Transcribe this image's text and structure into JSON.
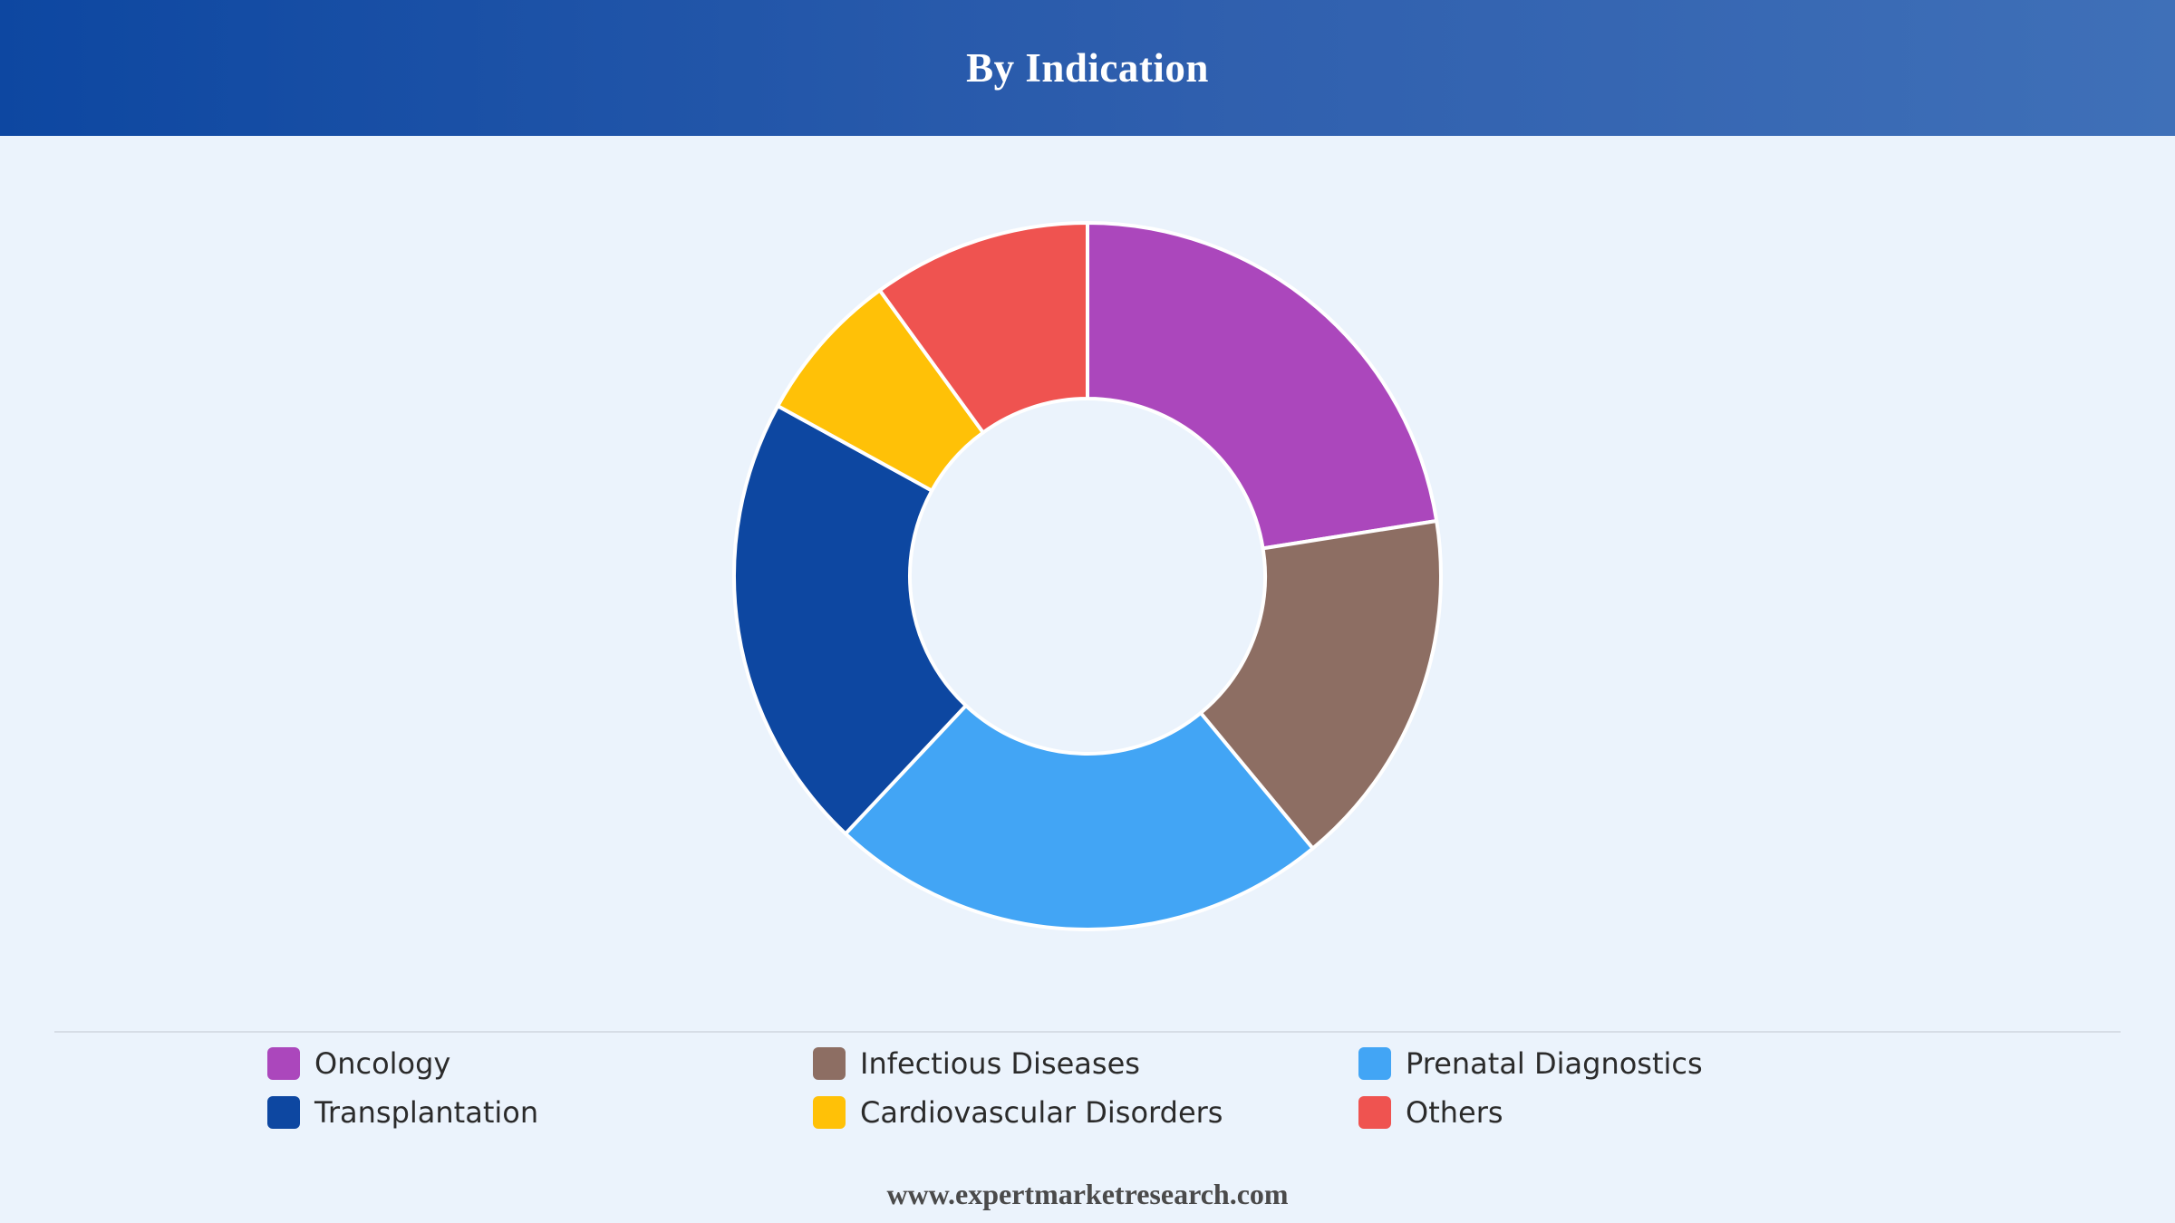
{
  "header": {
    "title": "By Indication"
  },
  "chart_data": {
    "type": "pie",
    "donut": true,
    "title": "By Indication",
    "categories": [
      "Oncology",
      "Infectious Diseases",
      "Prenatal Diagnostics",
      "Transplantation",
      "Cardiovascular Disorders",
      "Others"
    ],
    "values": [
      22.5,
      16.5,
      23,
      21,
      7,
      10
    ],
    "colors": [
      "#ab47bc",
      "#8d6e63",
      "#42a5f5",
      "#0d47a1",
      "#ffc107",
      "#ef5350"
    ],
    "legend_position": "bottom"
  },
  "legend": {
    "items": [
      {
        "label": "Oncology",
        "color": "#ab47bc"
      },
      {
        "label": "Infectious Diseases",
        "color": "#8d6e63"
      },
      {
        "label": "Prenatal Diagnostics",
        "color": "#42a5f5"
      },
      {
        "label": "Transplantation",
        "color": "#0d47a1"
      },
      {
        "label": "Cardiovascular Disorders",
        "color": "#ffc107"
      },
      {
        "label": "Others",
        "color": "#ef5350"
      }
    ]
  },
  "footer": {
    "source": "www.expertmarketresearch.com"
  }
}
